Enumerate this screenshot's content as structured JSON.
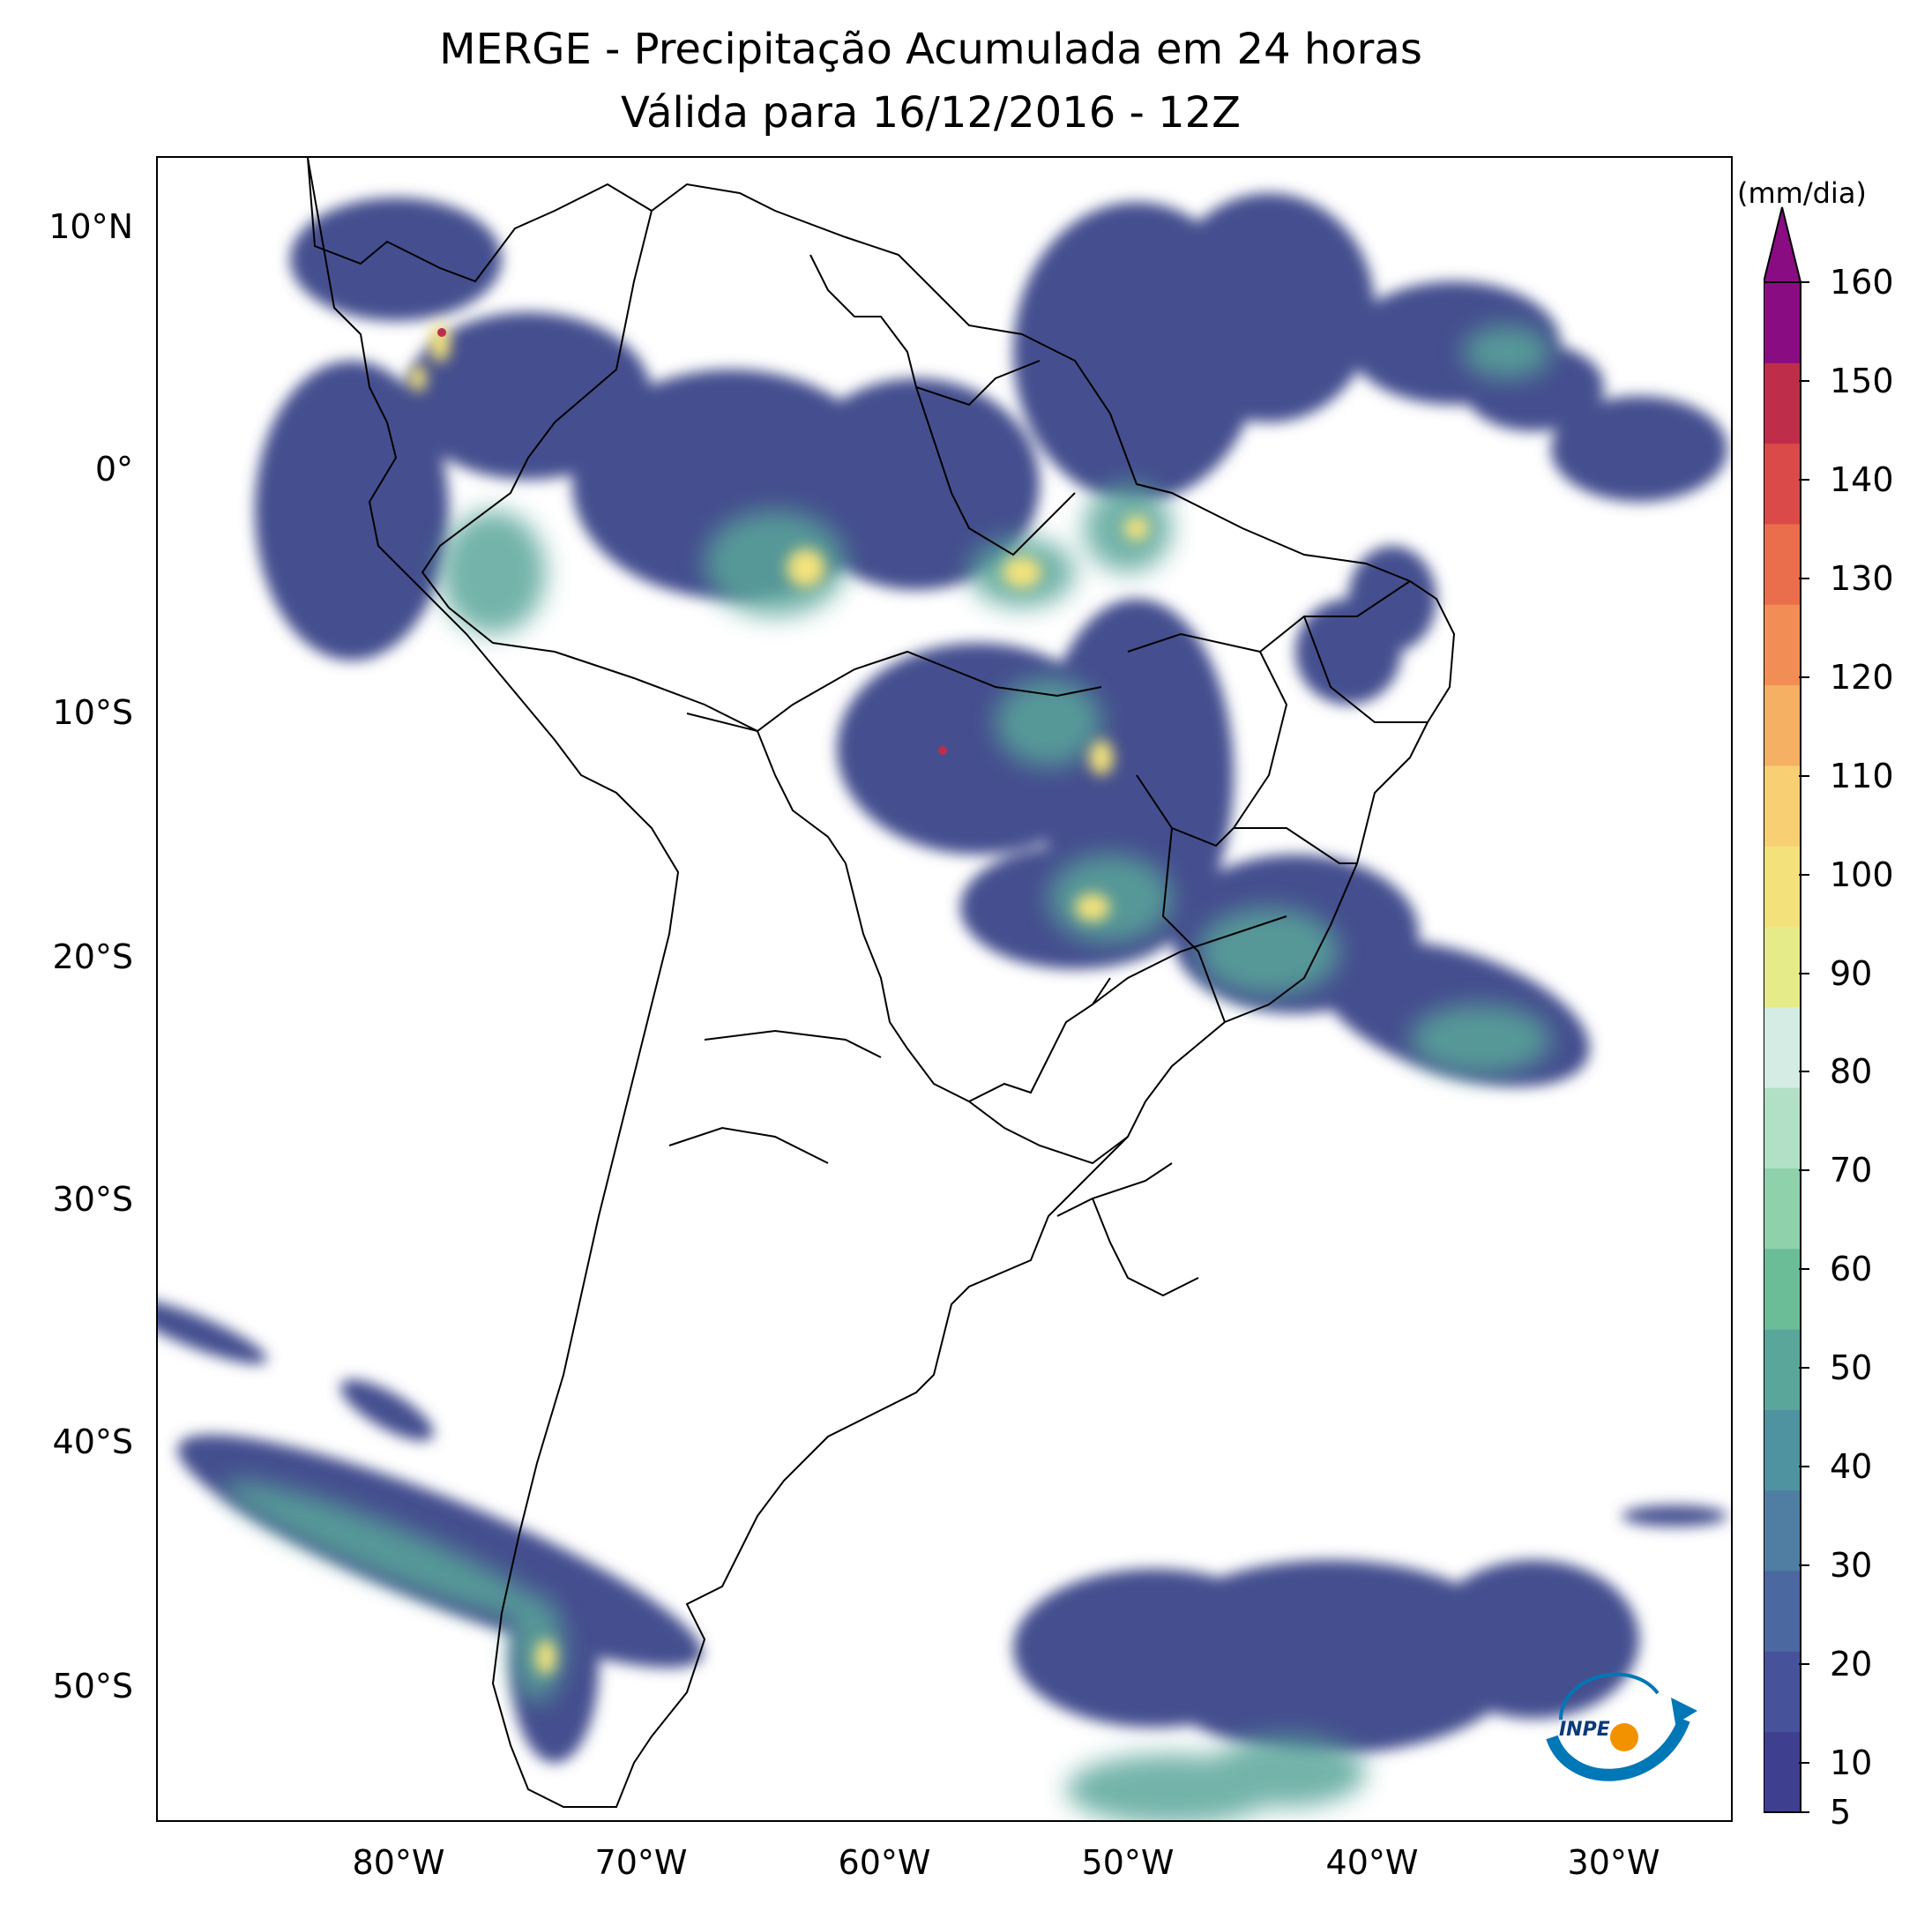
{
  "title": {
    "line1": "MERGE - Precipitação Acumulada em 24 horas",
    "line2": "Válida para 16/12/2016 - 12Z"
  },
  "map": {
    "region": "South America",
    "lon_range": [
      -90,
      -25
    ],
    "lat_range": [
      -56,
      13
    ],
    "background": "#ffffff",
    "outline_color": "#000000"
  },
  "axes": {
    "lat_labels": [
      "10°N",
      "0°",
      "10°S",
      "20°S",
      "30°S",
      "40°S",
      "50°S"
    ],
    "lon_labels": [
      "80°W",
      "70°W",
      "60°W",
      "50°W",
      "40°W",
      "30°W"
    ]
  },
  "colorbar": {
    "unit": "(mm/dia)",
    "ticks": [
      "5",
      "10",
      "20",
      "30",
      "40",
      "50",
      "60",
      "70",
      "80",
      "90",
      "100",
      "110",
      "120",
      "130",
      "140",
      "150",
      "160"
    ],
    "colors": [
      "#3f3f8f",
      "#46529a",
      "#4c68a0",
      "#4f7ea2",
      "#4f92a0",
      "#5aa69a",
      "#6bbd98",
      "#8ed1ab",
      "#b2e0c6",
      "#d5ece4",
      "#e6eb8a",
      "#f3e27c",
      "#f8cf72",
      "#f6b063",
      "#f28e55",
      "#ea6e4b",
      "#d94a48",
      "#be2e4a",
      "#8a0c82"
    ]
  },
  "logo": {
    "text": "INPE",
    "icon": "inpe-logo-icon"
  }
}
